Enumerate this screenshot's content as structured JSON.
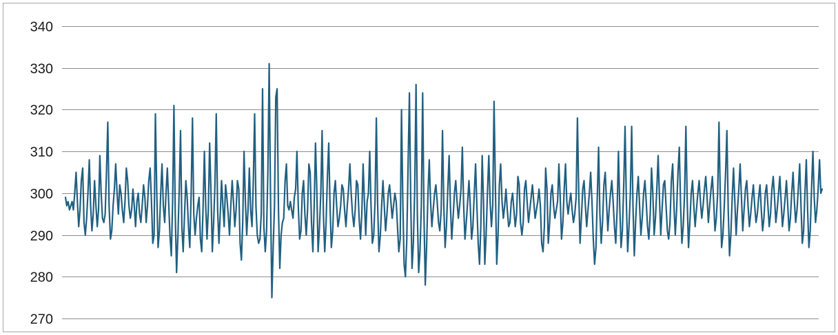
{
  "chart_data": {
    "type": "line",
    "title": "",
    "xlabel": "",
    "ylabel": "",
    "ylim": [
      270,
      340
    ],
    "yticks": [
      270,
      280,
      290,
      300,
      310,
      320,
      330,
      340
    ],
    "ytick_labels": [
      "270",
      "280",
      "290",
      "300",
      "310",
      "320",
      "330",
      "340"
    ],
    "grid": true,
    "legend": "none",
    "series": [
      {
        "color": "#215f80",
        "y": [
          299,
          297,
          298,
          296,
          297,
          298,
          296,
          300,
          305,
          298,
          292,
          296,
          303,
          306,
          293,
          290,
          294,
          300,
          308,
          297,
          291,
          295,
          303,
          297,
          292,
          296,
          309,
          300,
          294,
          293,
          295,
          305,
          317,
          297,
          289,
          291,
          297,
          301,
          307,
          300,
          295,
          302,
          300,
          296,
          293,
          298,
          306,
          303,
          297,
          294,
          296,
          301,
          297,
          292,
          298,
          300,
          295,
          293,
          297,
          302,
          299,
          293,
          297,
          303,
          306,
          298,
          288,
          290,
          319,
          300,
          287,
          291,
          300,
          307,
          297,
          293,
          300,
          306,
          298,
          290,
          285,
          298,
          321,
          295,
          281,
          290,
          301,
          315,
          292,
          286,
          295,
          303,
          299,
          292,
          287,
          300,
          318,
          295,
          290,
          294,
          297,
          299,
          289,
          286,
          296,
          310,
          297,
          289,
          296,
          312,
          300,
          286,
          293,
          302,
          319,
          296,
          288,
          295,
          303,
          297,
          292,
          302,
          299,
          295,
          290,
          297,
          303,
          298,
          292,
          296,
          303,
          301,
          288,
          284,
          293,
          310,
          298,
          290,
          296,
          306,
          296,
          292,
          303,
          319,
          297,
          290,
          288,
          289,
          295,
          325,
          292,
          286,
          291,
          305,
          331,
          300,
          275,
          287,
          297,
          323,
          325,
          296,
          282,
          290,
          293,
          294,
          303,
          307,
          297,
          296,
          298,
          296,
          294,
          299,
          301,
          310,
          297,
          289,
          291,
          300,
          303,
          295,
          290,
          296,
          307,
          305,
          293,
          286,
          297,
          312,
          301,
          286,
          292,
          300,
          315,
          295,
          286,
          293,
          304,
          312,
          297,
          287,
          291,
          300,
          303,
          297,
          292,
          294,
          297,
          302,
          301,
          296,
          292,
          297,
          301,
          307,
          300,
          295,
          292,
          296,
          303,
          302,
          294,
          289,
          295,
          307,
          298,
          290,
          298,
          300,
          310,
          297,
          288,
          290,
          298,
          318,
          297,
          286,
          290,
          297,
          303,
          297,
          291,
          295,
          300,
          302,
          298,
          294,
          297,
          300,
          298,
          292,
          286,
          289,
          320,
          298,
          283,
          280,
          289,
          307,
          324,
          298,
          282,
          288,
          301,
          326,
          295,
          281,
          286,
          297,
          324,
          295,
          278,
          287,
          300,
          308,
          298,
          292,
          296,
          300,
          302,
          298,
          293,
          291,
          296,
          315,
          297,
          287,
          292,
          301,
          309,
          297,
          289,
          294,
          300,
          303,
          298,
          294,
          297,
          301,
          311,
          297,
          289,
          293,
          298,
          303,
          297,
          289,
          292,
          300,
          307,
          297,
          288,
          283,
          292,
          309,
          298,
          283,
          290,
          300,
          309,
          298,
          292,
          297,
          322,
          301,
          283,
          290,
          302,
          307,
          298,
          294,
          297,
          301,
          296,
          292,
          293,
          298,
          300,
          296,
          292,
          295,
          304,
          302,
          293,
          290,
          293,
          301,
          303,
          298,
          293,
          296,
          299,
          302,
          298,
          294,
          296,
          298,
          301,
          297,
          288,
          286,
          292,
          306,
          301,
          288,
          293,
          300,
          302,
          297,
          294,
          296,
          298,
          307,
          299,
          289,
          293,
          301,
          307,
          298,
          295,
          298,
          300,
          296,
          293,
          295,
          299,
          318,
          300,
          288,
          294,
          301,
          303,
          297,
          292,
          296,
          300,
          305,
          298,
          289,
          283,
          287,
          299,
          311,
          295,
          288,
          293,
          302,
          305,
          298,
          291,
          296,
          300,
          303,
          298,
          292,
          288,
          296,
          310,
          297,
          287,
          291,
          302,
          316,
          298,
          286,
          292,
          300,
          316,
          297,
          285,
          293,
          300,
          304,
          297,
          290,
          294,
          300,
          303,
          298,
          292,
          289,
          295,
          306,
          300,
          290,
          294,
          301,
          309,
          299,
          290,
          296,
          302,
          303,
          297,
          291,
          289,
          293,
          303,
          307,
          297,
          290,
          296,
          305,
          311,
          297,
          288,
          292,
          300,
          316,
          298,
          287,
          293,
          300,
          303,
          297,
          292,
          296,
          300,
          303,
          298,
          294,
          297,
          301,
          304,
          299,
          293,
          297,
          301,
          304,
          298,
          291,
          294,
          300,
          317,
          299,
          287,
          290,
          297,
          305,
          315,
          296,
          285,
          290,
          299,
          306,
          298,
          290,
          296,
          301,
          307,
          299,
          291,
          296,
          301,
          303,
          297,
          292,
          295,
          299,
          302,
          297,
          293,
          295,
          299,
          302,
          296,
          291,
          294,
          300,
          302,
          297,
          292,
          295,
          301,
          304,
          299,
          293,
          296,
          300,
          304,
          298,
          292,
          295,
          299,
          303,
          297,
          291,
          294,
          300,
          305,
          298,
          293,
          296,
          301,
          307,
          297,
          288,
          291,
          300,
          308,
          296,
          287,
          291,
          301,
          310,
          299,
          293,
          296,
          301,
          308,
          300,
          301
        ]
      }
    ]
  }
}
